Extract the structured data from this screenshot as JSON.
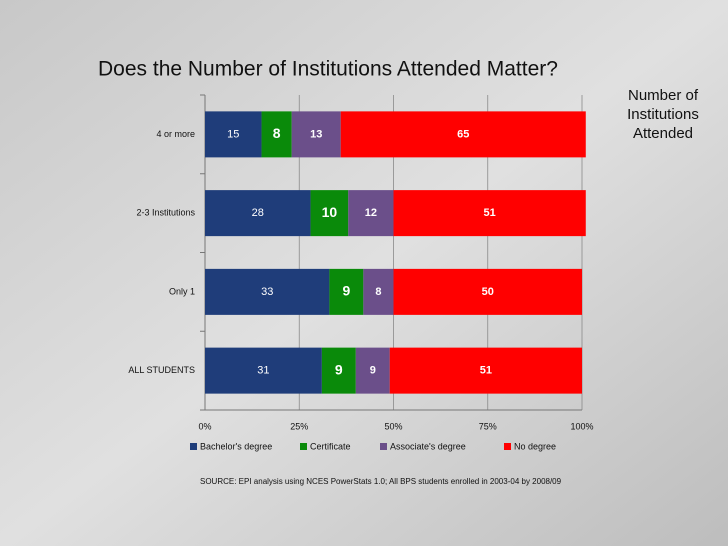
{
  "title": "Does the Number of Institutions Attended Matter?",
  "side_label": [
    "Number of",
    "Institutions",
    "Attended"
  ],
  "source": "SOURCE: EPI analysis using NCES PowerStats 1.0; All BPS students enrolled in 2003-04 by 2008/09",
  "chart_data": {
    "type": "stacked-bar-horizontal",
    "categories": [
      "4 or more",
      "2-3 Institutions",
      "Only 1",
      "ALL STUDENTS"
    ],
    "series": [
      {
        "name": "Bachelor's degree",
        "color": "#1f3d7a",
        "values": [
          15,
          28,
          33,
          31
        ]
      },
      {
        "name": "Certificate",
        "color": "#0a8a0a",
        "values": [
          8,
          10,
          9,
          9
        ]
      },
      {
        "name": "Associate's degree",
        "color": "#6b4f8a",
        "values": [
          13,
          12,
          8,
          9
        ]
      },
      {
        "name": "No degree",
        "color": "#ff0000",
        "values": [
          65,
          51,
          50,
          51
        ]
      }
    ],
    "xlim": [
      0,
      100
    ],
    "xticks": [
      {
        "value": 0,
        "label": "0%"
      },
      {
        "value": 25,
        "label": "25%"
      },
      {
        "value": 50,
        "label": "50%"
      },
      {
        "value": 75,
        "label": "75%"
      },
      {
        "value": 100,
        "label": "100%"
      }
    ],
    "grid": true,
    "legend": "bottom"
  }
}
